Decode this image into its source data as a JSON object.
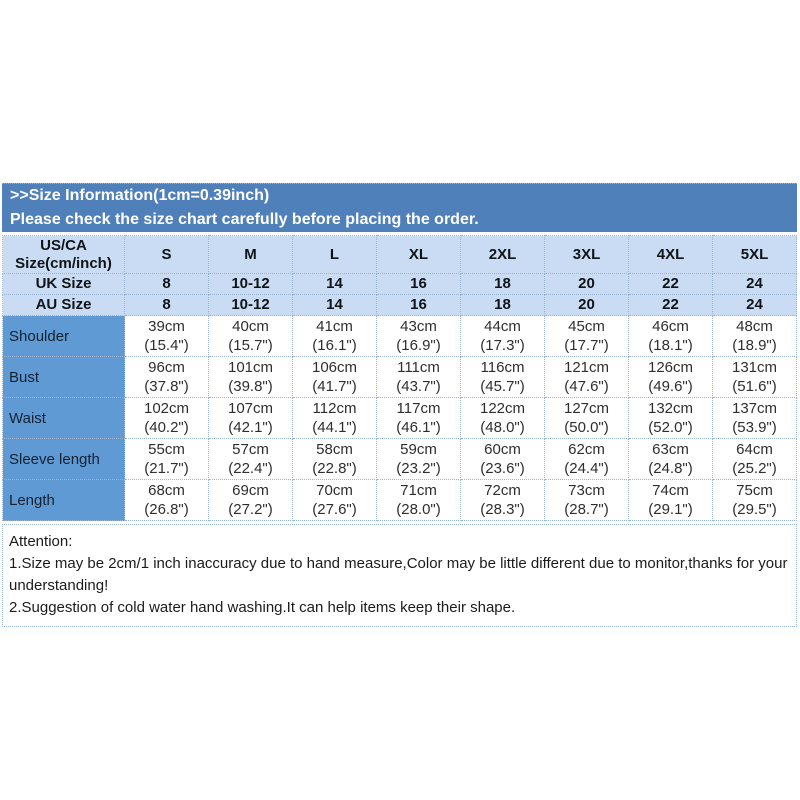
{
  "banner": {
    "line1": ">>Size Information(1cm=0.39inch)",
    "line2": "Please check the size chart carefully before placing the order.",
    "bg_color": "#5080ba",
    "text_color": "#ffffff"
  },
  "table": {
    "corner_header": {
      "line1": "US/CA",
      "line2": "Size(cm/inch)"
    },
    "size_columns": [
      "S",
      "M",
      "L",
      "XL",
      "2XL",
      "3XL",
      "4XL",
      "5XL"
    ],
    "conversion_rows": [
      {
        "label": "UK Size",
        "values": [
          "8",
          "10-12",
          "14",
          "16",
          "18",
          "20",
          "22",
          "24"
        ]
      },
      {
        "label": "AU Size",
        "values": [
          "8",
          "10-12",
          "14",
          "16",
          "18",
          "20",
          "22",
          "24"
        ]
      }
    ],
    "measurement_rows": [
      {
        "label": "Shoulder",
        "cells": [
          {
            "cm": "39cm",
            "inch": "(15.4\")"
          },
          {
            "cm": "40cm",
            "inch": "(15.7\")"
          },
          {
            "cm": "41cm",
            "inch": "(16.1\")"
          },
          {
            "cm": "43cm",
            "inch": "(16.9\")"
          },
          {
            "cm": "44cm",
            "inch": "(17.3\")"
          },
          {
            "cm": "45cm",
            "inch": "(17.7\")"
          },
          {
            "cm": "46cm",
            "inch": "(18.1\")"
          },
          {
            "cm": "48cm",
            "inch": "(18.9\")"
          }
        ]
      },
      {
        "label": "Bust",
        "cells": [
          {
            "cm": "96cm",
            "inch": "(37.8\")"
          },
          {
            "cm": "101cm",
            "inch": "(39.8\")"
          },
          {
            "cm": "106cm",
            "inch": "(41.7\")"
          },
          {
            "cm": "111cm",
            "inch": "(43.7\")"
          },
          {
            "cm": "116cm",
            "inch": "(45.7\")"
          },
          {
            "cm": "121cm",
            "inch": "(47.6\")"
          },
          {
            "cm": "126cm",
            "inch": "(49.6\")"
          },
          {
            "cm": "131cm",
            "inch": "(51.6\")"
          }
        ]
      },
      {
        "label": "Waist",
        "cells": [
          {
            "cm": "102cm",
            "inch": "(40.2\")"
          },
          {
            "cm": "107cm",
            "inch": "(42.1\")"
          },
          {
            "cm": "112cm",
            "inch": "(44.1\")"
          },
          {
            "cm": "117cm",
            "inch": "(46.1\")"
          },
          {
            "cm": "122cm",
            "inch": "(48.0\")"
          },
          {
            "cm": "127cm",
            "inch": "(50.0\")"
          },
          {
            "cm": "132cm",
            "inch": "(52.0\")"
          },
          {
            "cm": "137cm",
            "inch": "(53.9\")"
          }
        ]
      },
      {
        "label": "Sleeve length",
        "cells": [
          {
            "cm": "55cm",
            "inch": "(21.7\")"
          },
          {
            "cm": "57cm",
            "inch": "(22.4\")"
          },
          {
            "cm": "58cm",
            "inch": "(22.8\")"
          },
          {
            "cm": "59cm",
            "inch": "(23.2\")"
          },
          {
            "cm": "60cm",
            "inch": "(23.6\")"
          },
          {
            "cm": "62cm",
            "inch": "(24.4\")"
          },
          {
            "cm": "63cm",
            "inch": "(24.8\")"
          },
          {
            "cm": "64cm",
            "inch": "(25.2\")"
          }
        ]
      },
      {
        "label": "Length",
        "cells": [
          {
            "cm": "68cm",
            "inch": "(26.8\")"
          },
          {
            "cm": "69cm",
            "inch": "(27.2\")"
          },
          {
            "cm": "70cm",
            "inch": "(27.6\")"
          },
          {
            "cm": "71cm",
            "inch": "(28.0\")"
          },
          {
            "cm": "72cm",
            "inch": "(28.3\")"
          },
          {
            "cm": "73cm",
            "inch": "(28.7\")"
          },
          {
            "cm": "74cm",
            "inch": "(29.1\")"
          },
          {
            "cm": "75cm",
            "inch": "(29.5\")"
          }
        ]
      }
    ],
    "colors": {
      "header_bg": "#c9dcf3",
      "label_column_bg": "#5f9ad5",
      "grid_line": "#9ab4d4"
    }
  },
  "attention": {
    "title": "Attention:",
    "lines": [
      "1.Size may be 2cm/1 inch inaccuracy due to hand measure,Color may be little different due to monitor,thanks for your understanding!",
      "2.Suggestion of cold water hand washing.It can help items keep their shape."
    ]
  }
}
